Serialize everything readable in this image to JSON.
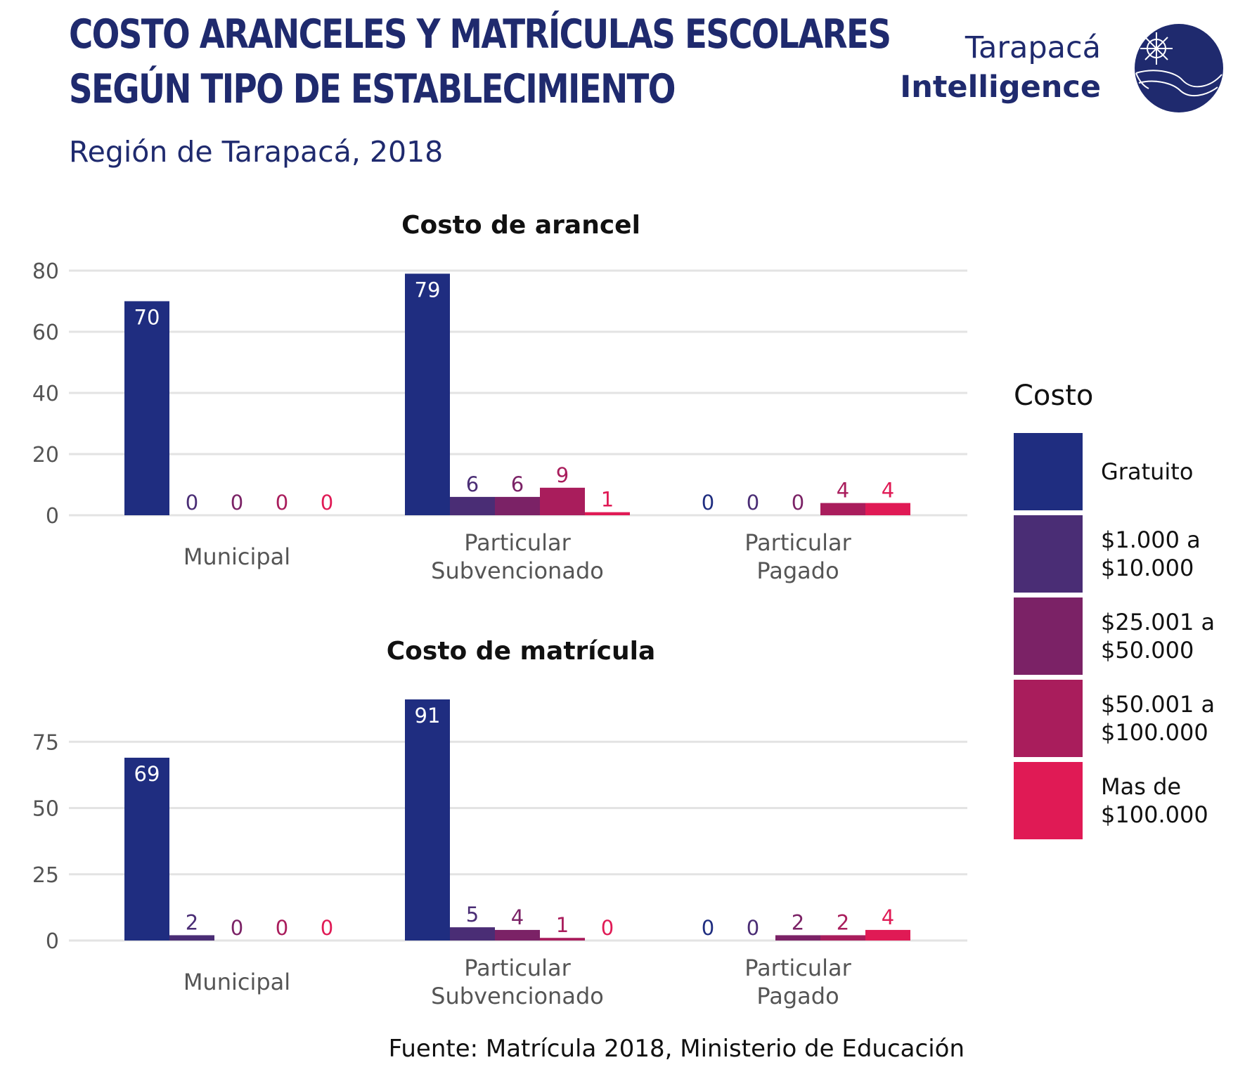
{
  "header": {
    "title_line1": "COSTO ARANCELES Y MATRÍCULAS ESCOLARES",
    "title_line2": "SEGÚN TIPO DE ESTABLECIMIENTO",
    "subtitle": "Región de Tarapacá, 2018",
    "brand_line1": "Tarapacá",
    "brand_line2": "Intelligence"
  },
  "legend": {
    "title": "Costo",
    "items": [
      {
        "label": "Gratuito",
        "color": "#1f2d80"
      },
      {
        "label": "$1.000 a $10.000",
        "color": "#4a2d75"
      },
      {
        "label": "$25.001 a $50.000",
        "color": "#7b2266"
      },
      {
        "label": "$50.001 a $100.000",
        "color": "#a91d5c"
      },
      {
        "label": "Mas de $100.000",
        "color": "#e01a55"
      }
    ]
  },
  "source": "Fuente: Matrícula 2018, Ministerio de Educación",
  "chart_data": [
    {
      "type": "bar",
      "title": "Costo de arancel",
      "categories": [
        "Municipal",
        "Particular Subvencionado",
        "Particular Pagado"
      ],
      "category_lines": [
        [
          "Municipal"
        ],
        [
          "Particular",
          "Subvencionado"
        ],
        [
          "Particular",
          "Pagado"
        ]
      ],
      "series": [
        {
          "name": "Gratuito",
          "values": [
            70,
            79,
            0
          ]
        },
        {
          "name": "$1.000 a $10.000",
          "values": [
            0,
            6,
            0
          ]
        },
        {
          "name": "$25.001 a $50.000",
          "values": [
            0,
            6,
            0
          ]
        },
        {
          "name": "$50.001 a $100.000",
          "values": [
            0,
            9,
            4
          ]
        },
        {
          "name": "Mas de $100.000",
          "values": [
            0,
            1,
            4
          ]
        }
      ],
      "yticks": [
        0,
        20,
        40,
        60,
        80
      ],
      "ylim": [
        0,
        80
      ],
      "grid": true
    },
    {
      "type": "bar",
      "title": "Costo de matrícula",
      "categories": [
        "Municipal",
        "Particular Subvencionado",
        "Particular Pagado"
      ],
      "category_lines": [
        [
          "Municipal"
        ],
        [
          "Particular",
          "Subvencionado"
        ],
        [
          "Particular",
          "Pagado"
        ]
      ],
      "series": [
        {
          "name": "Gratuito",
          "values": [
            69,
            91,
            0
          ]
        },
        {
          "name": "$1.000 a $10.000",
          "values": [
            2,
            5,
            0
          ]
        },
        {
          "name": "$25.001 a $50.000",
          "values": [
            0,
            4,
            2
          ]
        },
        {
          "name": "$50.001 a $100.000",
          "values": [
            0,
            1,
            2
          ]
        },
        {
          "name": "Mas de $100.000",
          "values": [
            0,
            0,
            4
          ]
        }
      ],
      "yticks": [
        0,
        25,
        50,
        75
      ],
      "ylim": [
        0,
        91
      ],
      "grid": true
    }
  ]
}
